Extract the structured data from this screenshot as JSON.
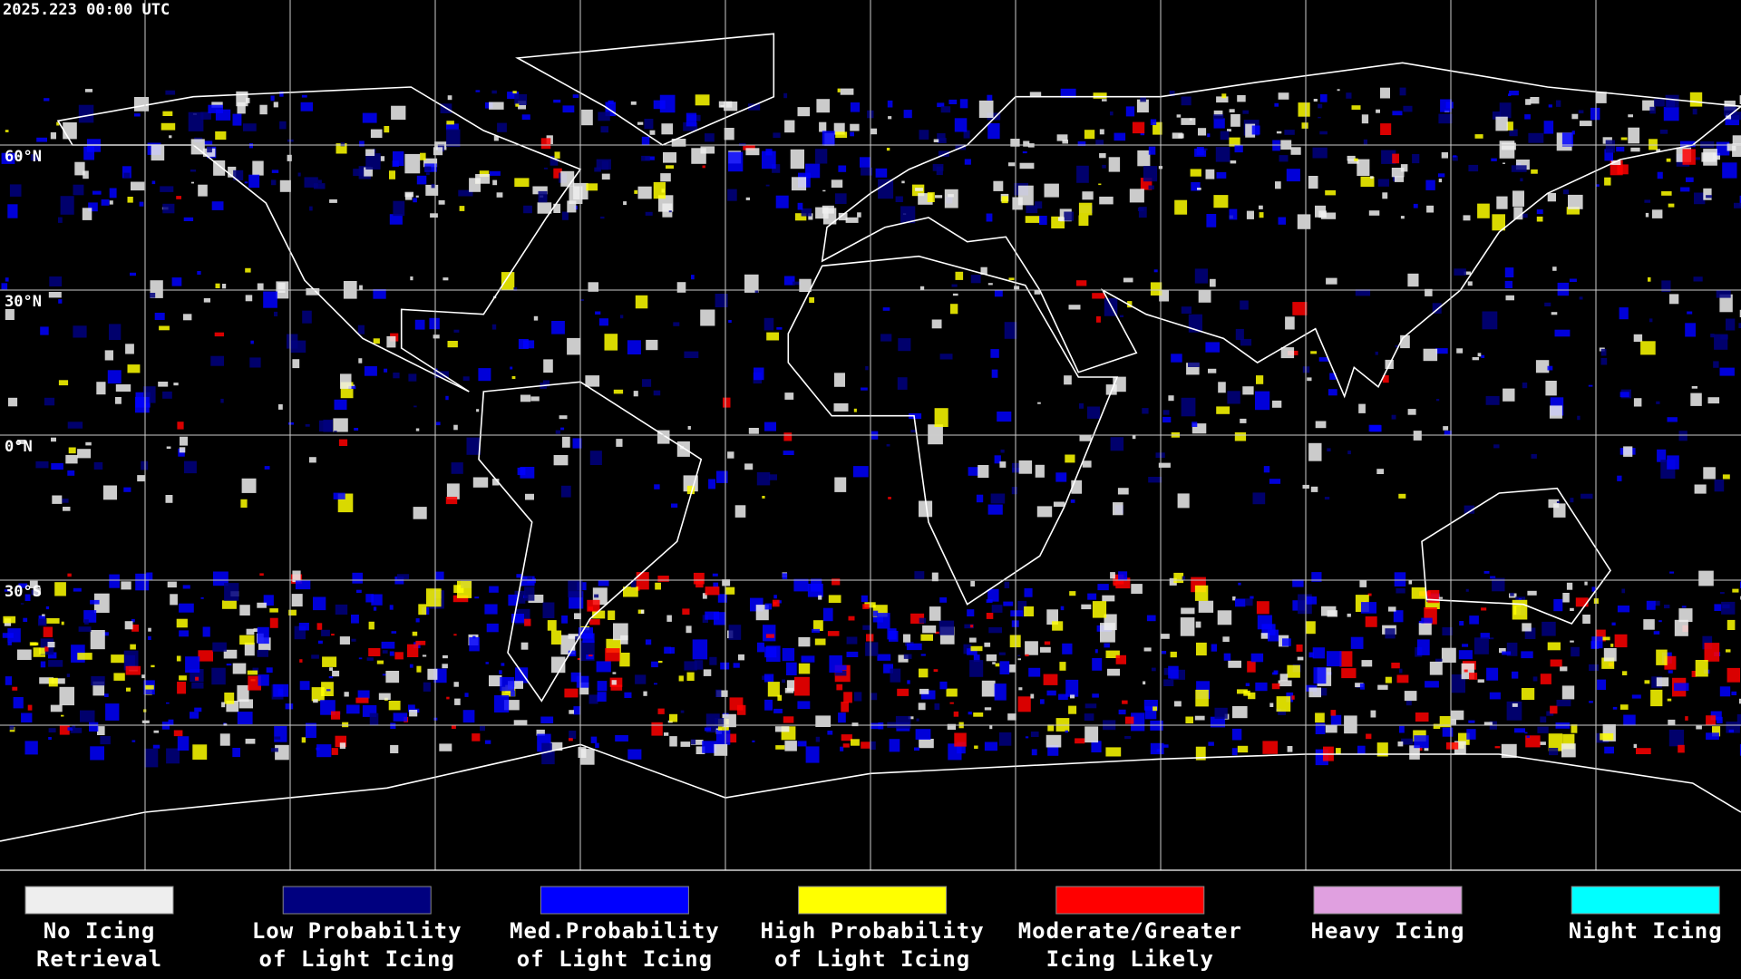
{
  "header": {
    "timestamp": "2025.223 00:00 UTC"
  },
  "map": {
    "lat_labels": [
      "60°N",
      "30°N",
      "0°N",
      "30°S"
    ]
  },
  "legend": {
    "items": [
      {
        "label": [
          "No Icing",
          "Retrieval"
        ],
        "color": "#eeeeee"
      },
      {
        "label": [
          "Low Probability",
          "of Light Icing"
        ],
        "color": "#00007f"
      },
      {
        "label": [
          "Med.Probability",
          "of Light Icing"
        ],
        "color": "#0000ff"
      },
      {
        "label": [
          "High Probability",
          "of Light Icing"
        ],
        "color": "#ffff00"
      },
      {
        "label": [
          "Moderate/Greater",
          "Icing Likely"
        ],
        "color": "#ff0000"
      },
      {
        "label": [
          "Heavy Icing"
        ],
        "color": "#e0a0e0"
      },
      {
        "label": [
          "Night Icing"
        ],
        "color": "#00ffff"
      }
    ]
  }
}
